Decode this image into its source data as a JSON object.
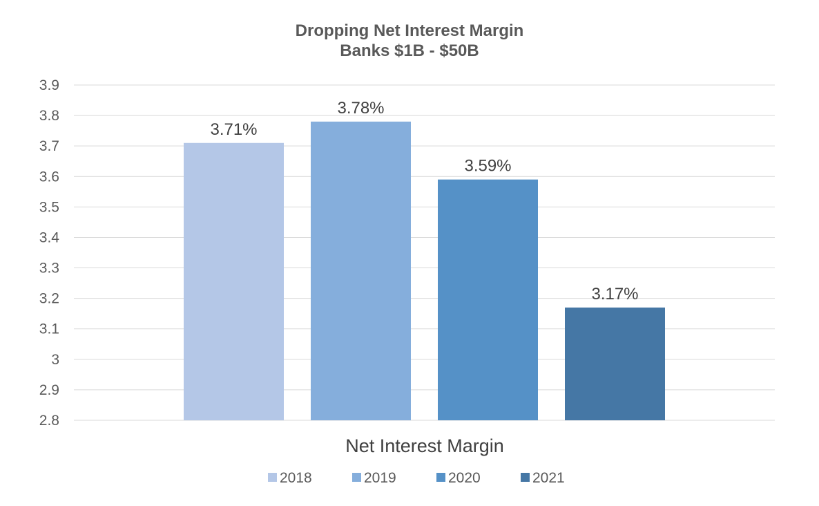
{
  "chart_data": {
    "type": "bar",
    "title": "Dropping Net Interest Margin",
    "subtitle": "Banks $1B - $50B",
    "xlabel": "Net Interest Margin",
    "ylabel": "",
    "ylim": [
      2.8,
      3.9
    ],
    "yticks": [
      "3.9",
      "3.8",
      "3.7",
      "3.6",
      "3.5",
      "3.4",
      "3.3",
      "3.2",
      "3.1",
      "3",
      "2.9",
      "2.8"
    ],
    "grid": true,
    "legend_position": "bottom",
    "series": [
      {
        "name": "2018",
        "value": 3.71,
        "label": "3.71%",
        "color": "#B4C7E7"
      },
      {
        "name": "2019",
        "value": 3.78,
        "label": "3.78%",
        "color": "#85AEDC"
      },
      {
        "name": "2020",
        "value": 3.59,
        "label": "3.59%",
        "color": "#5591C7"
      },
      {
        "name": "2021",
        "value": 3.17,
        "label": "3.17%",
        "color": "#4577A5"
      }
    ]
  }
}
